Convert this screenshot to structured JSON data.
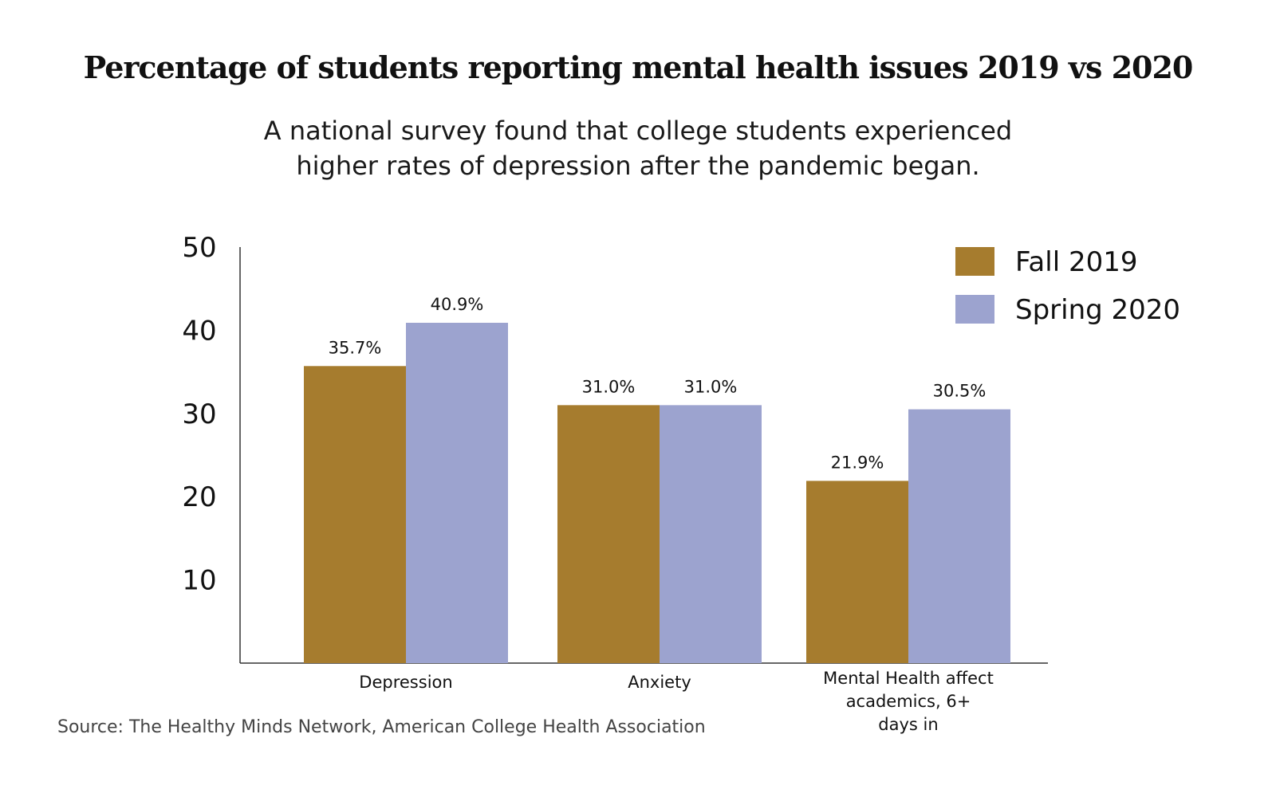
{
  "title": "Percentage of students reporting mental health issues 2019 vs 2020",
  "subtitle_lines": [
    "A national survey found that college students experienced",
    "higher rates of depression after the pandemic began."
  ],
  "source": "Source: The Healthy Minds Network, American College Health Association",
  "chart_data": {
    "type": "bar",
    "categories": [
      [
        "Depression"
      ],
      [
        "Anxiety"
      ],
      [
        "Mental Health affect",
        "academics, 6+",
        "days in"
      ]
    ],
    "series": [
      {
        "name": "Fall 2019",
        "color": "#a67c2e",
        "values": [
          35.7,
          31.0,
          21.9
        ],
        "labels": [
          "35.7%",
          "31.0%",
          "21.9%"
        ]
      },
      {
        "name": "Spring 2020",
        "color": "#9ca3cf",
        "values": [
          40.9,
          31.0,
          30.5
        ],
        "labels": [
          "40.9%",
          "31.0%",
          "30.5%"
        ]
      }
    ],
    "yticks": [
      10,
      20,
      30,
      40,
      50
    ],
    "ylim": [
      0,
      50
    ],
    "legend": "top-right",
    "grid": false
  }
}
